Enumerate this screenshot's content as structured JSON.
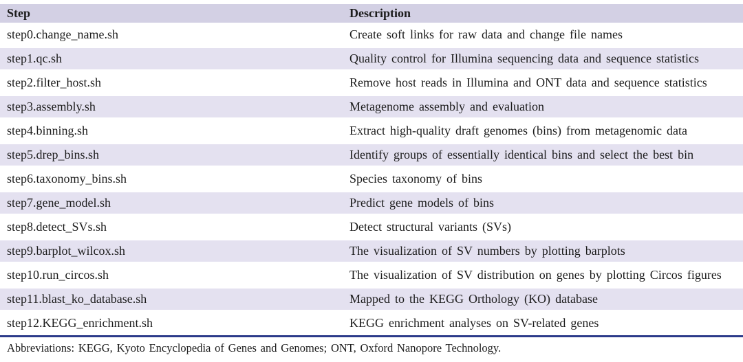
{
  "table": {
    "columns": {
      "step": "Step",
      "description": "Description"
    },
    "rows": [
      {
        "step": "step0.change_name.sh",
        "description": "Create soft links for raw data and change file names"
      },
      {
        "step": "step1.qc.sh",
        "description": "Quality control for Illumina sequencing data and sequence statistics"
      },
      {
        "step": "step2.filter_host.sh",
        "description": "Remove host reads in Illumina and ONT data and sequence statistics"
      },
      {
        "step": "step3.assembly.sh",
        "description": "Metagenome assembly and evaluation"
      },
      {
        "step": "step4.binning.sh",
        "description": "Extract high-quality draft genomes (bins) from metagenomic data"
      },
      {
        "step": "step5.drep_bins.sh",
        "description": "Identify groups of essentially identical bins and select the best bin"
      },
      {
        "step": "step6.taxonomy_bins.sh",
        "description": "Species taxonomy of bins"
      },
      {
        "step": "step7.gene_model.sh",
        "description": "Predict gene models of bins"
      },
      {
        "step": "step8.detect_SVs.sh",
        "description": "Detect structural variants (SVs)"
      },
      {
        "step": "step9.barplot_wilcox.sh",
        "description": "The visualization of SV numbers by plotting barplots"
      },
      {
        "step": "step10.run_circos.sh",
        "description": "The visualization of SV distribution on genes by plotting Circos figures"
      },
      {
        "step": "step11.blast_ko_database.sh",
        "description": "Mapped to the KEGG Orthology (KO) database"
      },
      {
        "step": "step12.KEGG_enrichment.sh",
        "description": "KEGG enrichment analyses on SV-related genes"
      }
    ]
  },
  "footnote": "Abbreviations: KEGG, Kyoto Encyclopedia of Genes and Genomes; ONT, Oxford Nanopore Technology.",
  "colors": {
    "header_bg": "#d3d0e4",
    "stripe_bg": "#e4e1f0",
    "rule": "#2c3a8a",
    "text": "#1c1c1c"
  }
}
